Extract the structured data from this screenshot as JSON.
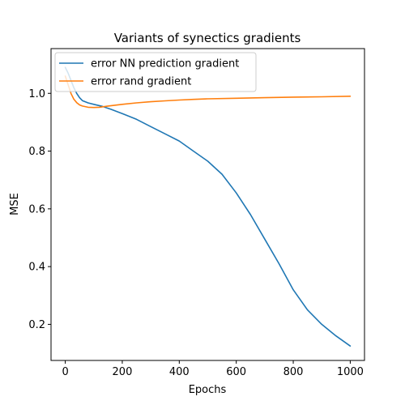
{
  "chart_data": {
    "type": "line",
    "title": "Variants of synectics gradients",
    "xlabel": "Epochs",
    "ylabel": "MSE",
    "xlim": [
      -50,
      1050
    ],
    "ylim": [
      0.075,
      1.155
    ],
    "xticks": [
      0,
      200,
      400,
      600,
      800,
      1000
    ],
    "yticks": [
      0.2,
      0.4,
      0.6,
      0.8,
      1.0
    ],
    "xtick_labels": [
      "0",
      "200",
      "400",
      "600",
      "800",
      "1000"
    ],
    "ytick_labels": [
      "0.2",
      "0.4",
      "0.6",
      "0.8",
      "1.0"
    ],
    "grid": false,
    "legend_position": "upper-left",
    "series": [
      {
        "name": "error NN prediction gradient",
        "color": "#1f77b4",
        "x": [
          0,
          10,
          20,
          30,
          40,
          50,
          60,
          80,
          100,
          130,
          160,
          200,
          250,
          300,
          350,
          400,
          450,
          500,
          550,
          600,
          650,
          700,
          750,
          800,
          850,
          900,
          950,
          1000
        ],
        "y": [
          1.09,
          1.07,
          1.045,
          1.02,
          1.0,
          0.985,
          0.975,
          0.967,
          0.962,
          0.955,
          0.945,
          0.93,
          0.91,
          0.885,
          0.86,
          0.835,
          0.8,
          0.765,
          0.72,
          0.655,
          0.58,
          0.495,
          0.41,
          0.32,
          0.25,
          0.2,
          0.16,
          0.125
        ]
      },
      {
        "name": "error rand gradient",
        "color": "#ff7f0e",
        "x": [
          0,
          10,
          20,
          30,
          40,
          50,
          60,
          80,
          100,
          120,
          150,
          200,
          250,
          300,
          350,
          400,
          450,
          500,
          600,
          700,
          800,
          900,
          1000
        ],
        "y": [
          1.06,
          1.03,
          1.0,
          0.98,
          0.968,
          0.96,
          0.956,
          0.952,
          0.951,
          0.952,
          0.956,
          0.962,
          0.967,
          0.971,
          0.974,
          0.977,
          0.979,
          0.981,
          0.983,
          0.985,
          0.987,
          0.988,
          0.99
        ]
      }
    ]
  }
}
